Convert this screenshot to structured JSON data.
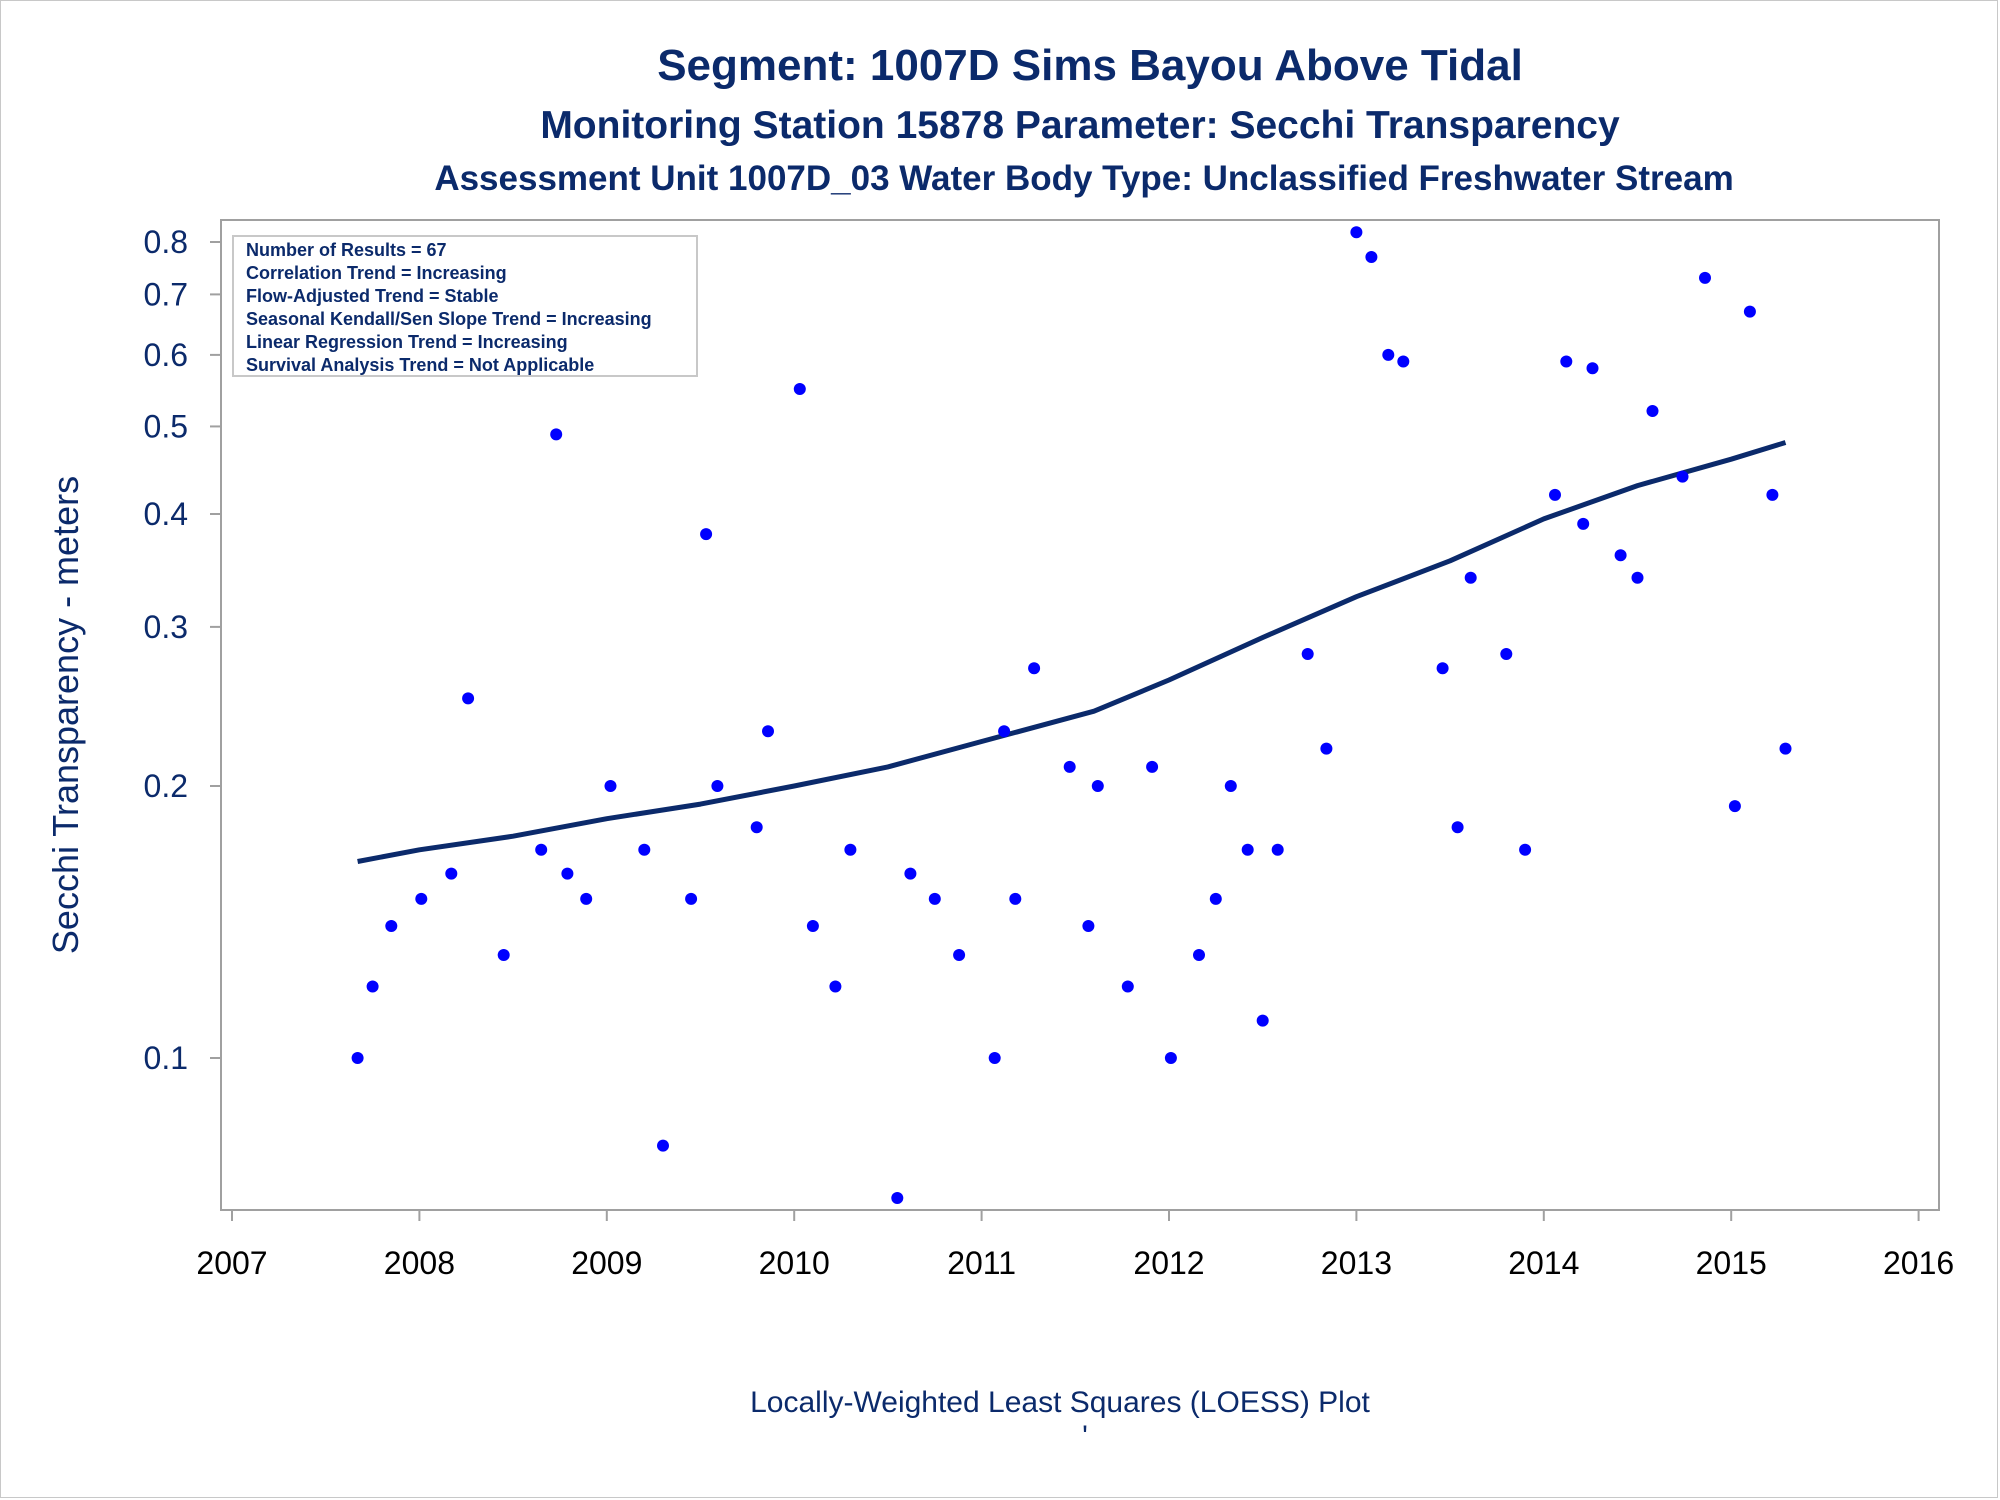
{
  "chart_data": {
    "type": "scatter",
    "title": "Segment: 1007D  Sims Bayou Above Tidal",
    "subtitle": "Monitoring Station 15878 Parameter: Secchi Transparency",
    "subtitle2": "Assessment Unit 1007D_03   Water Body Type: Unclassified Freshwater Stream",
    "xlabel": "",
    "ylabel": "Secchi Transparency - meters",
    "footnote": "Locally-Weighted Least Squares (LOESS) Plot",
    "footnote_mark": "'",
    "y_scale": "log",
    "xlim": [
      2007,
      2016
    ],
    "ylim": [
      0.075,
      0.83
    ],
    "x_ticks": [
      "2007",
      "2008",
      "2009",
      "2010",
      "2011",
      "2012",
      "2013",
      "2014",
      "2015",
      "2016"
    ],
    "y_ticks": [
      "0.1",
      "0.2",
      "0.3",
      "0.4",
      "0.5",
      "0.6",
      "0.7",
      "0.8"
    ],
    "grid": false,
    "stats_box": [
      "Number of Results = 67",
      "Correlation Trend = Increasing",
      "Flow-Adjusted Trend = Stable",
      "Seasonal Kendall/Sen Slope Trend = Increasing",
      "Linear Regression Trend = Increasing",
      "Survival Analysis Trend = Not Applicable"
    ],
    "stats_box_position": "top-left",
    "colors": {
      "points": "#0000ff",
      "loess": "#0b2a6b",
      "text": "#0b2a6b",
      "frame": "#a0a0a0"
    },
    "points": [
      [
        2007.67,
        0.1
      ],
      [
        2007.75,
        0.12
      ],
      [
        2007.85,
        0.14
      ],
      [
        2008.01,
        0.15
      ],
      [
        2008.17,
        0.16
      ],
      [
        2008.26,
        0.25
      ],
      [
        2008.45,
        0.13
      ],
      [
        2008.65,
        0.17
      ],
      [
        2008.73,
        0.49
      ],
      [
        2008.79,
        0.16
      ],
      [
        2008.89,
        0.15
      ],
      [
        2009.02,
        0.2
      ],
      [
        2009.2,
        0.17
      ],
      [
        2009.3,
        0.08
      ],
      [
        2009.45,
        0.15
      ],
      [
        2009.53,
        0.38
      ],
      [
        2009.59,
        0.2
      ],
      [
        2009.8,
        0.18
      ],
      [
        2009.86,
        0.23
      ],
      [
        2010.03,
        0.55
      ],
      [
        2010.1,
        0.14
      ],
      [
        2010.22,
        0.12
      ],
      [
        2010.3,
        0.17
      ],
      [
        2010.55,
        0.07
      ],
      [
        2010.62,
        0.16
      ],
      [
        2010.75,
        0.15
      ],
      [
        2010.88,
        0.13
      ],
      [
        2011.07,
        0.1
      ],
      [
        2011.12,
        0.23
      ],
      [
        2011.18,
        0.15
      ],
      [
        2011.28,
        0.27
      ],
      [
        2011.47,
        0.21
      ],
      [
        2011.57,
        0.14
      ],
      [
        2011.62,
        0.2
      ],
      [
        2011.78,
        0.12
      ],
      [
        2011.91,
        0.21
      ],
      [
        2012.01,
        0.1
      ],
      [
        2012.16,
        0.13
      ],
      [
        2012.25,
        0.15
      ],
      [
        2012.33,
        0.2
      ],
      [
        2012.42,
        0.17
      ],
      [
        2012.5,
        0.11
      ],
      [
        2012.58,
        0.17
      ],
      [
        2012.74,
        0.28
      ],
      [
        2012.84,
        0.22
      ],
      [
        2013.0,
        0.82
      ],
      [
        2013.08,
        0.77
      ],
      [
        2013.17,
        0.6
      ],
      [
        2013.25,
        0.59
      ],
      [
        2013.46,
        0.27
      ],
      [
        2013.54,
        0.18
      ],
      [
        2013.61,
        0.34
      ],
      [
        2013.8,
        0.28
      ],
      [
        2013.9,
        0.17
      ],
      [
        2014.06,
        0.42
      ],
      [
        2014.12,
        0.59
      ],
      [
        2014.21,
        0.39
      ],
      [
        2014.26,
        0.58
      ],
      [
        2014.41,
        0.36
      ],
      [
        2014.5,
        0.34
      ],
      [
        2014.58,
        0.52
      ],
      [
        2014.74,
        0.44
      ],
      [
        2014.86,
        0.73
      ],
      [
        2015.02,
        0.19
      ],
      [
        2015.1,
        0.67
      ],
      [
        2015.22,
        0.42
      ],
      [
        2015.29,
        0.22
      ]
    ],
    "loess": [
      [
        2007.67,
        0.165
      ],
      [
        2008.0,
        0.17
      ],
      [
        2008.5,
        0.176
      ],
      [
        2009.0,
        0.184
      ],
      [
        2009.5,
        0.191
      ],
      [
        2010.0,
        0.2
      ],
      [
        2010.5,
        0.21
      ],
      [
        2011.0,
        0.224
      ],
      [
        2011.6,
        0.242
      ],
      [
        2012.0,
        0.262
      ],
      [
        2012.5,
        0.292
      ],
      [
        2013.0,
        0.324
      ],
      [
        2013.5,
        0.355
      ],
      [
        2014.0,
        0.395
      ],
      [
        2014.5,
        0.43
      ],
      [
        2015.0,
        0.46
      ],
      [
        2015.29,
        0.48
      ]
    ]
  }
}
